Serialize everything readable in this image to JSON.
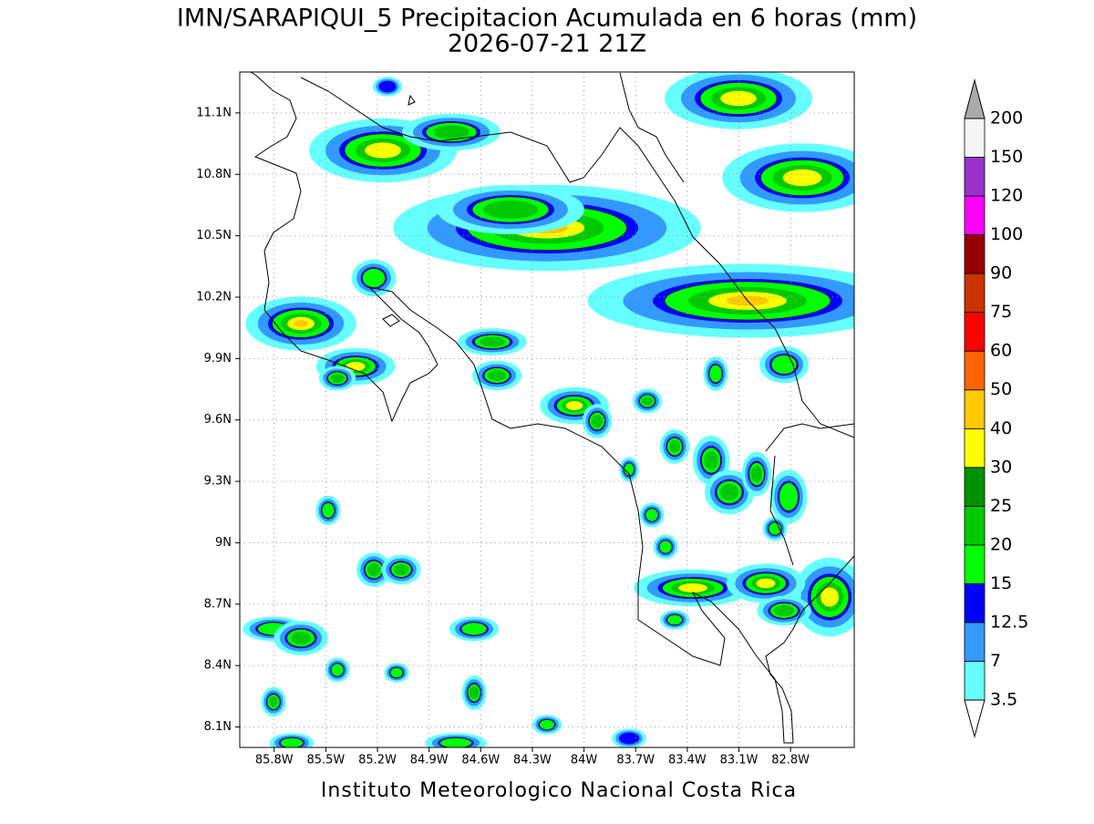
{
  "title": "IMN/SARAPIQUI_5 Precipitacion Acumulada en 6 horas (mm)",
  "subtitle": "2026-07-21 21Z",
  "map": {
    "lonlim": [
      -86.0,
      -82.43
    ],
    "latlim": [
      8.0,
      11.3
    ],
    "lon_ticks": [
      {
        "value": -85.8,
        "label": "85.8W"
      },
      {
        "value": -85.5,
        "label": "85.5W"
      },
      {
        "value": -85.2,
        "label": "85.2W"
      },
      {
        "value": -84.9,
        "label": "84.9W"
      },
      {
        "value": -84.6,
        "label": "84.6W"
      },
      {
        "value": -84.3,
        "label": "84.3W"
      },
      {
        "value": -84.0,
        "label": "84W"
      },
      {
        "value": -83.7,
        "label": "83.7W"
      },
      {
        "value": -83.4,
        "label": "83.4W"
      },
      {
        "value": -83.1,
        "label": "83.1W"
      },
      {
        "value": -82.8,
        "label": "82.8W"
      }
    ],
    "lat_ticks": [
      {
        "value": 8.1,
        "label": "8.1N"
      },
      {
        "value": 8.4,
        "label": "8.4N"
      },
      {
        "value": 8.7,
        "label": "8.7N"
      },
      {
        "value": 9.0,
        "label": "9N"
      },
      {
        "value": 9.3,
        "label": "9.3N"
      },
      {
        "value": 9.6,
        "label": "9.6N"
      },
      {
        "value": 9.9,
        "label": "9.9N"
      },
      {
        "value": 10.2,
        "label": "10.2N"
      },
      {
        "value": 10.5,
        "label": "10.5N"
      },
      {
        "value": 10.8,
        "label": "10.8N"
      },
      {
        "value": 11.1,
        "label": "11.1N"
      }
    ],
    "grid": true
  },
  "colorbar": {
    "levels": [
      3.5,
      7,
      12.5,
      15,
      20,
      25,
      30,
      40,
      50,
      60,
      75,
      90,
      100,
      120,
      150,
      200
    ],
    "colors": [
      "#66ffff",
      "#3399ff",
      "#0000ff",
      "#00ff00",
      "#00c800",
      "#009100",
      "#ffff00",
      "#ffc800",
      "#ff6400",
      "#ff0000",
      "#cc3300",
      "#960000",
      "#ff00ff",
      "#9933cc",
      "#f5f5f5"
    ],
    "under_color": "#ffffff",
    "over_color": "#aaaaaa"
  },
  "footer": "Instituto Meteorologico Nacional Costa Rica"
}
